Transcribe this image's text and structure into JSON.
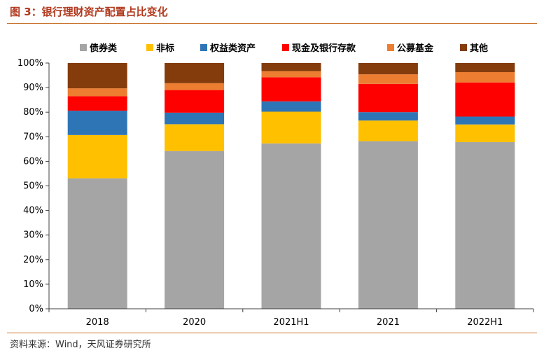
{
  "figure": {
    "title": "图 3：银行理财资产配置占比变化",
    "source": "资料来源：Wind，天风证券研究所",
    "colors": {
      "title": "#b23a1f",
      "rule": "#c9732d"
    }
  },
  "chart_data": {
    "type": "bar",
    "stacked": true,
    "title": "",
    "xlabel": "",
    "ylabel": "",
    "categories": [
      "2018",
      "2020",
      "2021H1",
      "2021",
      "2022H1"
    ],
    "ylim": [
      0,
      100
    ],
    "y_ticks": [
      0,
      10,
      20,
      30,
      40,
      50,
      60,
      70,
      80,
      90,
      100
    ],
    "y_tick_labels": [
      "0%",
      "10%",
      "20%",
      "30%",
      "40%",
      "50%",
      "60%",
      "70%",
      "80%",
      "90%",
      "100%"
    ],
    "grid": false,
    "legend_position": "top",
    "series": [
      {
        "name": "债券类",
        "color": "#a5a5a5",
        "values": [
          53.1,
          64.2,
          67.3,
          68.2,
          67.8
        ]
      },
      {
        "name": "非标",
        "color": "#ffc000",
        "values": [
          17.6,
          10.9,
          12.9,
          8.4,
          7.2
        ]
      },
      {
        "name": "权益类资产",
        "color": "#2e75b6",
        "values": [
          9.9,
          4.7,
          4.2,
          3.4,
          3.2
        ]
      },
      {
        "name": "现金及银行存款",
        "color": "#ff0000",
        "values": [
          5.9,
          9.2,
          9.8,
          11.5,
          13.9
        ]
      },
      {
        "name": "公募基金",
        "color": "#ed7d31",
        "values": [
          3.2,
          2.8,
          2.5,
          3.9,
          4.2
        ]
      },
      {
        "name": "其他",
        "color": "#843c0c",
        "values": [
          10.3,
          8.2,
          3.3,
          4.6,
          3.7
        ]
      }
    ]
  }
}
